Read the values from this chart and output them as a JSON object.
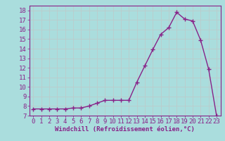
{
  "x": [
    0,
    1,
    2,
    3,
    4,
    5,
    6,
    7,
    8,
    9,
    10,
    11,
    12,
    13,
    14,
    15,
    16,
    17,
    18,
    19,
    20,
    21,
    22,
    23
  ],
  "y": [
    7.7,
    7.7,
    7.7,
    7.7,
    7.7,
    7.8,
    7.8,
    8.0,
    8.3,
    8.6,
    8.6,
    8.6,
    8.6,
    10.5,
    12.2,
    13.9,
    15.5,
    16.2,
    17.8,
    17.1,
    16.9,
    14.9,
    11.9,
    7.0
  ],
  "line_color": "#882288",
  "marker": "+",
  "markersize": 4,
  "markeredgewidth": 1.0,
  "linewidth": 1.0,
  "bg_color": "#aadddd",
  "grid_color": "#bbcccc",
  "xlabel": "Windchill (Refroidissement éolien,°C)",
  "ylabel": "",
  "title": "",
  "xlim": [
    -0.5,
    23.5
  ],
  "ylim": [
    7,
    18.5
  ],
  "xticks": [
    0,
    1,
    2,
    3,
    4,
    5,
    6,
    7,
    8,
    9,
    10,
    11,
    12,
    13,
    14,
    15,
    16,
    17,
    18,
    19,
    20,
    21,
    22,
    23
  ],
  "yticks": [
    7,
    8,
    9,
    10,
    11,
    12,
    13,
    14,
    15,
    16,
    17,
    18
  ],
  "xlabel_fontsize": 6.5,
  "tick_fontsize": 6.5,
  "tick_color": "#882288",
  "spine_color": "#882288"
}
